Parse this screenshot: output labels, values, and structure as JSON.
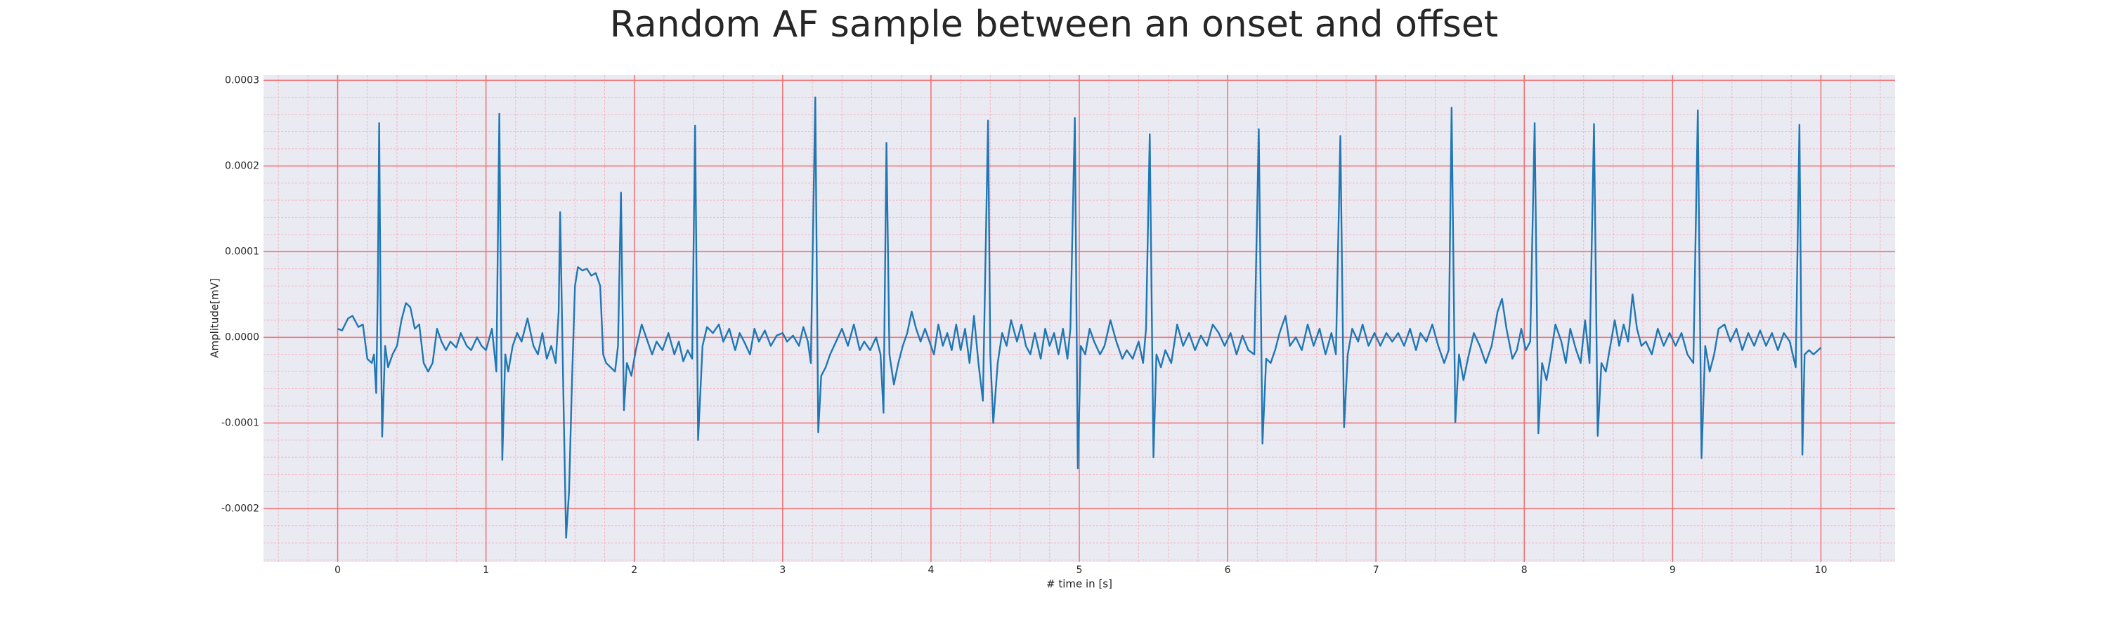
{
  "chart_data": {
    "type": "line",
    "title": "Random AF sample between an onset and offset",
    "xlabel": "# time in [s]",
    "ylabel": "Amplitude[mV]",
    "color": "#1f77b4",
    "grid": true,
    "minor_grid": true,
    "xlim": [
      -0.5,
      10.5
    ],
    "ylim": [
      -0.000262,
      0.000306
    ],
    "xticks": [
      0,
      1,
      2,
      3,
      4,
      5,
      6,
      7,
      8,
      9,
      10
    ],
    "yticks": [
      -0.0002,
      -0.0001,
      {
        "value": 0,
        "label": "0.0000"
      },
      0.0001,
      0.0002,
      0.0003
    ],
    "x": [
      0.0,
      0.03,
      0.07,
      0.1,
      0.14,
      0.17,
      0.2,
      0.23,
      0.245,
      0.26,
      0.27,
      0.28,
      0.29,
      0.3,
      0.32,
      0.34,
      0.37,
      0.4,
      0.43,
      0.46,
      0.49,
      0.52,
      0.55,
      0.58,
      0.61,
      0.64,
      0.67,
      0.7,
      0.73,
      0.76,
      0.8,
      0.83,
      0.87,
      0.9,
      0.94,
      0.97,
      1.0,
      1.04,
      1.07,
      1.09,
      1.11,
      1.13,
      1.15,
      1.18,
      1.21,
      1.24,
      1.28,
      1.32,
      1.35,
      1.38,
      1.41,
      1.44,
      1.47,
      1.49,
      1.5,
      1.52,
      1.54,
      1.56,
      1.58,
      1.6,
      1.62,
      1.65,
      1.68,
      1.71,
      1.74,
      1.77,
      1.79,
      1.81,
      1.84,
      1.87,
      1.89,
      1.91,
      1.93,
      1.95,
      1.98,
      2.01,
      2.05,
      2.09,
      2.12,
      2.15,
      2.19,
      2.23,
      2.27,
      2.3,
      2.33,
      2.36,
      2.39,
      2.41,
      2.43,
      2.46,
      2.49,
      2.53,
      2.57,
      2.6,
      2.64,
      2.68,
      2.71,
      2.74,
      2.78,
      2.81,
      2.84,
      2.88,
      2.92,
      2.96,
      3.0,
      3.03,
      3.07,
      3.11,
      3.14,
      3.17,
      3.19,
      3.22,
      3.24,
      3.26,
      3.29,
      3.32,
      3.36,
      3.4,
      3.44,
      3.48,
      3.52,
      3.55,
      3.59,
      3.63,
      3.66,
      3.68,
      3.7,
      3.72,
      3.75,
      3.78,
      3.81,
      3.84,
      3.87,
      3.9,
      3.93,
      3.96,
      3.99,
      4.02,
      4.05,
      4.08,
      4.11,
      4.14,
      4.17,
      4.2,
      4.23,
      4.26,
      4.29,
      4.32,
      4.35,
      4.385,
      4.4,
      4.42,
      4.45,
      4.48,
      4.51,
      4.54,
      4.58,
      4.61,
      4.64,
      4.67,
      4.7,
      4.74,
      4.77,
      4.8,
      4.83,
      4.86,
      4.89,
      4.92,
      4.94,
      4.97,
      4.99,
      5.01,
      5.04,
      5.07,
      5.1,
      5.14,
      5.17,
      5.21,
      5.25,
      5.29,
      5.32,
      5.36,
      5.4,
      5.43,
      5.45,
      5.475,
      5.5,
      5.52,
      5.55,
      5.58,
      5.62,
      5.66,
      5.7,
      5.74,
      5.78,
      5.82,
      5.86,
      5.9,
      5.94,
      5.98,
      6.02,
      6.06,
      6.1,
      6.14,
      6.18,
      6.21,
      6.235,
      6.26,
      6.29,
      6.32,
      6.35,
      6.39,
      6.42,
      6.46,
      6.5,
      6.54,
      6.58,
      6.62,
      6.66,
      6.7,
      6.73,
      6.76,
      6.785,
      6.81,
      6.84,
      6.88,
      6.91,
      6.95,
      6.99,
      7.03,
      7.07,
      7.11,
      7.15,
      7.19,
      7.23,
      7.27,
      7.3,
      7.34,
      7.38,
      7.42,
      7.46,
      7.49,
      7.51,
      7.535,
      7.56,
      7.59,
      7.62,
      7.66,
      7.7,
      7.74,
      7.78,
      7.82,
      7.85,
      7.88,
      7.92,
      7.95,
      7.98,
      8.01,
      8.04,
      8.07,
      8.095,
      8.12,
      8.15,
      8.18,
      8.21,
      8.25,
      8.28,
      8.31,
      8.35,
      8.38,
      8.41,
      8.44,
      8.47,
      8.495,
      8.52,
      8.55,
      8.58,
      8.61,
      8.64,
      8.67,
      8.7,
      8.73,
      8.76,
      8.79,
      8.82,
      8.86,
      8.9,
      8.94,
      8.98,
      9.02,
      9.06,
      9.1,
      9.14,
      9.17,
      9.195,
      9.22,
      9.25,
      9.28,
      9.31,
      9.35,
      9.39,
      9.43,
      9.47,
      9.51,
      9.55,
      9.59,
      9.63,
      9.67,
      9.71,
      9.75,
      9.79,
      9.83,
      9.855,
      9.875,
      9.89,
      9.92,
      9.95,
      10.0
    ],
    "values": [
      1e-05,
      8e-06,
      2.2e-05,
      2.5e-05,
      1.2e-05,
      1.5e-05,
      -2.5e-05,
      -3e-05,
      -2e-05,
      -6.5e-05,
      5e-05,
      0.00025,
      2e-05,
      -0.000116,
      -1e-05,
      -3.5e-05,
      -2e-05,
      -1e-05,
      2e-05,
      4e-05,
      3.5e-05,
      1e-05,
      1.5e-05,
      -3e-05,
      -4e-05,
      -3e-05,
      1e-05,
      -5e-06,
      -1.5e-05,
      -5e-06,
      -1.2e-05,
      5e-06,
      -1e-05,
      -1.5e-05,
      0,
      -1e-05,
      -1.5e-05,
      1e-05,
      -4e-05,
      0.000261,
      -0.000143,
      -2e-05,
      -4e-05,
      -1e-05,
      5e-06,
      -5e-06,
      2.2e-05,
      -1e-05,
      -2e-05,
      5e-06,
      -2.5e-05,
      -1e-05,
      -3e-05,
      3e-05,
      0.000146,
      -5e-05,
      -0.000234,
      -0.00018,
      -5e-05,
      6e-05,
      8.2e-05,
      7.8e-05,
      8e-05,
      7.2e-05,
      7.5e-05,
      6e-05,
      -2e-05,
      -3e-05,
      -3.5e-05,
      -4e-05,
      -1e-05,
      0.000169,
      -8.5e-05,
      -3e-05,
      -4.5e-05,
      -1.5e-05,
      1.5e-05,
      -5e-06,
      -2e-05,
      -5e-06,
      -1.5e-05,
      5e-06,
      -2e-05,
      -5e-06,
      -2.8e-05,
      -1.5e-05,
      -2.5e-05,
      0.000247,
      -0.00012,
      -1e-05,
      1.2e-05,
      5e-06,
      1.5e-05,
      -5e-06,
      1e-05,
      -1.5e-05,
      5e-06,
      -5e-06,
      -2e-05,
      1e-05,
      -5e-06,
      8e-06,
      -1e-05,
      2e-06,
      5e-06,
      -5e-06,
      2e-06,
      -1e-05,
      1.2e-05,
      -5e-06,
      -3e-05,
      0.00028,
      -0.000111,
      -4.5e-05,
      -3.5e-05,
      -2e-05,
      -5e-06,
      1e-05,
      -1e-05,
      1.5e-05,
      -1.5e-05,
      -5e-06,
      -1.5e-05,
      0,
      -2e-05,
      -8.8e-05,
      0.000227,
      -2e-05,
      -5.5e-05,
      -3e-05,
      -1e-05,
      5e-06,
      3e-05,
      1e-05,
      -5e-06,
      1e-05,
      -5e-06,
      -2e-05,
      1.5e-05,
      -1e-05,
      5e-06,
      -1.5e-05,
      1.5e-05,
      -1.5e-05,
      1e-05,
      -3e-05,
      2.5e-05,
      -3e-05,
      -7.4e-05,
      0.000253,
      -2e-05,
      -0.0001,
      -3e-05,
      5e-06,
      -1e-05,
      2e-05,
      -5e-06,
      1.5e-05,
      -1e-05,
      -2e-05,
      5e-06,
      -2.5e-05,
      1e-05,
      -1e-05,
      5e-06,
      -2e-05,
      1e-05,
      -2.5e-05,
      1e-05,
      0.000256,
      -0.000153,
      -1e-05,
      -2e-05,
      1e-05,
      -5e-06,
      -2e-05,
      -1e-05,
      2e-05,
      -5e-06,
      -2.5e-05,
      -1.5e-05,
      -2.5e-05,
      -5e-06,
      -3e-05,
      1e-05,
      0.000237,
      -0.00014,
      -2e-05,
      -3.5e-05,
      -1.5e-05,
      -3e-05,
      1.5e-05,
      -1e-05,
      5e-06,
      -1.5e-05,
      2e-06,
      -1e-05,
      1.5e-05,
      5e-06,
      -1e-05,
      5e-06,
      -2e-05,
      2e-06,
      -1.5e-05,
      -2e-05,
      0.000243,
      -0.000124,
      -2.5e-05,
      -3e-05,
      -1.5e-05,
      5e-06,
      2.5e-05,
      -1e-05,
      0,
      -1.5e-05,
      1.5e-05,
      -1e-05,
      1e-05,
      -2e-05,
      5e-06,
      -2e-05,
      0.000235,
      -0.000105,
      -2e-05,
      1e-05,
      -5e-06,
      1.5e-05,
      -1e-05,
      5e-06,
      -1e-05,
      5e-06,
      -5e-06,
      5e-06,
      -1e-05,
      1e-05,
      -1.5e-05,
      5e-06,
      -5e-06,
      1.5e-05,
      -1e-05,
      -3e-05,
      -1.5e-05,
      0.000268,
      -9.9e-05,
      -2e-05,
      -5e-05,
      -2.5e-05,
      5e-06,
      -1e-05,
      -3e-05,
      -1e-05,
      3e-05,
      4.5e-05,
      1e-05,
      -2.5e-05,
      -1.5e-05,
      1e-05,
      -1.5e-05,
      -5e-06,
      0.00025,
      -0.000112,
      -3e-05,
      -5e-05,
      -2e-05,
      1.5e-05,
      -5e-06,
      -3e-05,
      1e-05,
      -1.5e-05,
      -3e-05,
      2e-05,
      -3e-05,
      0.000249,
      -0.000115,
      -3e-05,
      -4e-05,
      -1e-05,
      2e-05,
      -1e-05,
      1.5e-05,
      -5e-06,
      5e-05,
      1e-05,
      -1e-05,
      -5e-06,
      -2e-05,
      1e-05,
      -1e-05,
      5e-06,
      -1e-05,
      5e-06,
      -2e-05,
      -3e-05,
      0.000265,
      -0.000141,
      -1e-05,
      -4e-05,
      -2e-05,
      1e-05,
      1.5e-05,
      -5e-06,
      1e-05,
      -1.5e-05,
      5e-06,
      -1e-05,
      8e-06,
      -1e-05,
      5e-06,
      -1.5e-05,
      5e-06,
      -5e-06,
      -3.5e-05,
      0.000248,
      -0.000137,
      -2e-05,
      -1.5e-05,
      -2e-05,
      -1.2e-05
    ]
  }
}
